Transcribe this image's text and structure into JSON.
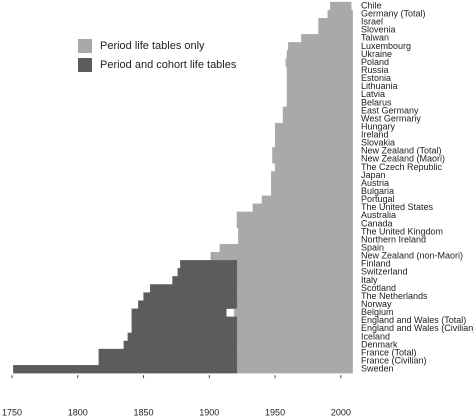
{
  "chart_data": {
    "type": "range-bar",
    "categories": [
      "Chile",
      "Germany (Total)",
      "Israel",
      "Slovenia",
      "Taiwan",
      "Luxembourg",
      "Ukraine",
      "Poland",
      "Russia",
      "Estonia",
      "Lithuania",
      "Latvia",
      "Belarus",
      "East Germany",
      "West Germany",
      "Hungary",
      "Ireland",
      "Slovakia",
      "New Zealand (Total)",
      "New Zealand (Maori)",
      "The Czech Republic",
      "Japan",
      "Austria",
      "Bulgaria",
      "Portugal",
      "The United States",
      "Australia",
      "Canada",
      "The United Kingdom",
      "Northern Ireland",
      "Spain",
      "New Zealand (non-Maori)",
      "Finland",
      "Switzerland",
      "Italy",
      "Scotland",
      "The Netherlands",
      "Norway",
      "Belgium",
      "England and Wales (Total)",
      "England and Wales (Civilian)",
      "Iceland",
      "Denmark",
      "France (Total)",
      "France (Civilian)",
      "Sweden"
    ],
    "series": [
      {
        "name": "Period life tables only",
        "color": "#a9a9a9",
        "starts": [
          1992,
          1990,
          1983,
          1983,
          1970,
          1960,
          1959,
          1958,
          1959,
          1959,
          1959,
          1959,
          1959,
          1956,
          1956,
          1950,
          1950,
          1950,
          1948,
          1948,
          1950,
          1947,
          1947,
          1947,
          1940,
          1933,
          1921,
          1921,
          1922,
          1922,
          1908,
          1901,
          1921,
          1921,
          1921,
          1921,
          1921,
          1921,
          1919,
          1921,
          1921,
          1921,
          1921,
          1921,
          1921,
          1921
        ],
        "ends": [
          2008,
          2009,
          2009,
          2009,
          2009,
          2009,
          2009,
          2009,
          2009,
          2009,
          2009,
          2009,
          2009,
          2009,
          2009,
          2009,
          2009,
          2009,
          2009,
          2009,
          2009,
          2009,
          2009,
          2009,
          2009,
          2009,
          2009,
          2009,
          2009,
          2009,
          2009,
          2009,
          2009,
          2009,
          2009,
          2009,
          2009,
          2009,
          2009,
          2009,
          2009,
          2009,
          2009,
          2009,
          2009,
          2009
        ]
      },
      {
        "name": "Period and cohort life tables",
        "color": "#5c5c5c",
        "starts": [
          null,
          null,
          null,
          null,
          null,
          null,
          null,
          null,
          null,
          null,
          null,
          null,
          null,
          null,
          null,
          null,
          null,
          null,
          null,
          null,
          null,
          null,
          null,
          null,
          null,
          null,
          null,
          null,
          null,
          null,
          null,
          null,
          1878,
          1876,
          1872,
          1855,
          1850,
          1846,
          1841,
          1841,
          1841,
          1838,
          1835,
          1816,
          1816,
          1751
        ],
        "ends": [
          null,
          null,
          null,
          null,
          null,
          null,
          null,
          null,
          null,
          null,
          null,
          null,
          null,
          null,
          null,
          null,
          null,
          null,
          null,
          null,
          null,
          null,
          null,
          null,
          null,
          null,
          null,
          null,
          null,
          null,
          null,
          null,
          1921,
          1921,
          1921,
          1921,
          1921,
          1921,
          1913,
          1921,
          1921,
          1921,
          1921,
          1921,
          1921,
          1921
        ]
      }
    ],
    "xlim": [
      1750,
      2010
    ],
    "xticks": [
      1750,
      1800,
      1850,
      1900,
      1950,
      2000
    ]
  }
}
